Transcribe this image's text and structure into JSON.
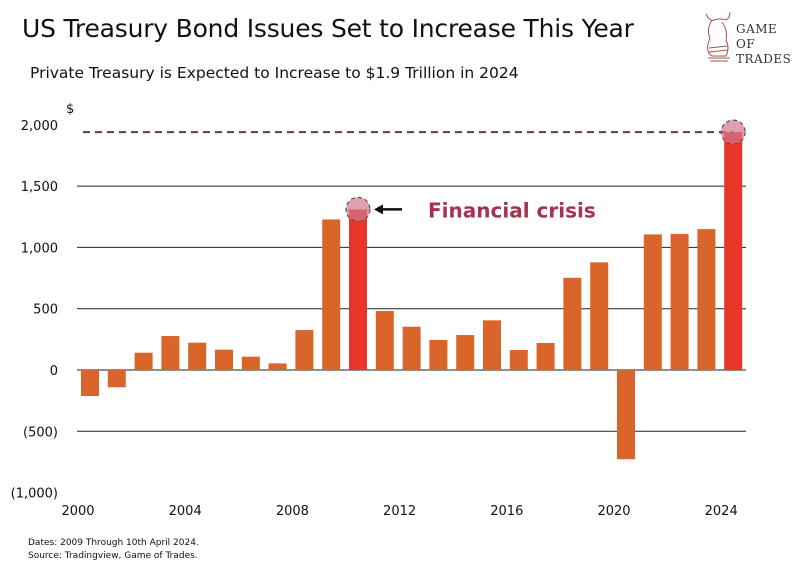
{
  "header": {
    "title": "US Treasury Bond Issues Set to Increase This Year",
    "subtitle": "Private Treasury is Expected to Increase to $1.9 Trillion in 2024"
  },
  "logo": {
    "line1": "GAME OF",
    "line2": "TRADES"
  },
  "notes": {
    "dates": "Dates: 2009 Through 10th April 2024.",
    "source": "Source: Tradingview, Game of Trades."
  },
  "colors": {
    "bar": "#d9652b",
    "highlight": "#e8352a",
    "annotation": "#a83050",
    "dash": "#6b3a4a"
  },
  "chart_data": {
    "type": "bar",
    "title": "US Treasury Bond Issues Set to Increase This Year",
    "ylabel": "$",
    "ylim": [
      -1000,
      2000
    ],
    "yticks": [
      2000,
      1500,
      1000,
      500,
      0,
      -500,
      -1000
    ],
    "ytick_labels": [
      "2,000",
      "1,500",
      "1,000",
      "500",
      "0",
      "(500)",
      "(1,000)"
    ],
    "xtick_labels": [
      "2000",
      "2004",
      "2008",
      "2012",
      "2016",
      "2020",
      "2024"
    ],
    "categories": [
      2000,
      2001,
      2002,
      2003,
      2004,
      2005,
      2006,
      2007,
      2008,
      2009,
      2010,
      2011,
      2012,
      2013,
      2014,
      2015,
      2016,
      2017,
      2018,
      2019,
      2020,
      2021,
      2022,
      2023,
      2024
    ],
    "values": [
      -212,
      -141,
      141,
      277,
      223,
      166,
      109,
      54,
      326,
      1228,
      1310,
      481,
      353,
      245,
      285,
      405,
      163,
      220,
      752,
      878,
      -728,
      1106,
      1110,
      1149,
      1940
    ],
    "highlighted": [
      2010,
      2024
    ],
    "reference_line": 1940,
    "annotation": {
      "year": 2010,
      "text": "Financial crisis"
    }
  }
}
